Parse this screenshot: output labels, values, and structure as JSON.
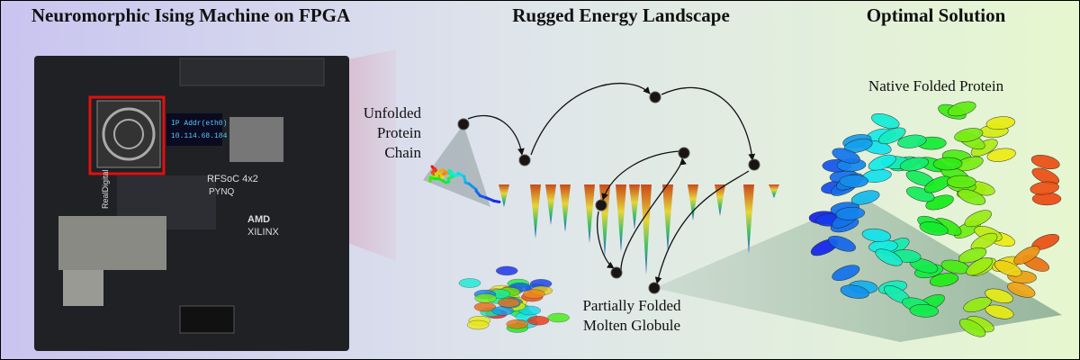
{
  "panels": [
    {
      "title": "Neuromorphic Ising Machine on FPGA"
    },
    {
      "title": "Rugged Energy Landscape"
    },
    {
      "title": "Optimal Solution"
    }
  ],
  "board": {
    "display_lines": [
      "IP Addr(eth0)",
      "10.114.68.184"
    ],
    "labels": [
      "RFSoC 4x2",
      "PYNQ",
      "AMD",
      "XILINX",
      "RealDigital"
    ]
  },
  "annotations": {
    "unfolded": [
      "Unfolded",
      "Protein",
      "Chain"
    ],
    "partial": [
      "Partially Folded",
      "Molten Globule"
    ],
    "native": "Native Folded Protein"
  }
}
